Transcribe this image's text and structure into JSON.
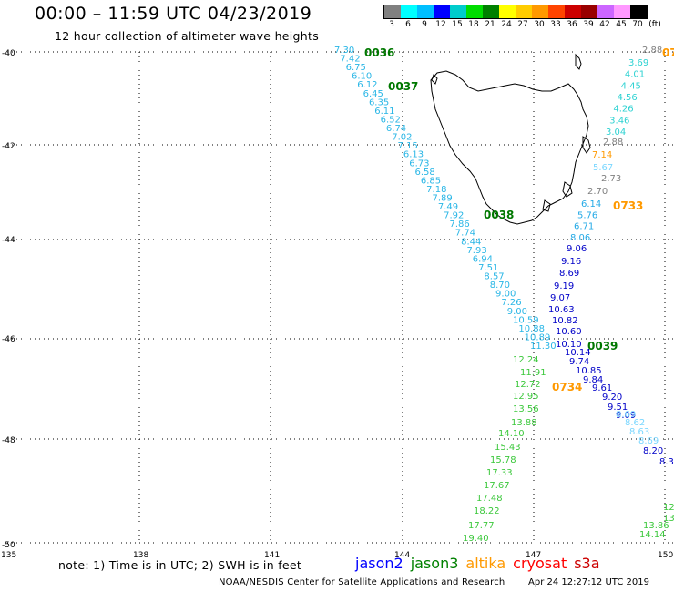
{
  "header": {
    "title": "00:00 – 11:59 UTC 04/23/2019",
    "subtitle": "12 hour collection of altimeter wave heights"
  },
  "legend": {
    "colors": [
      "#808080",
      "#00ffff",
      "#00bfff",
      "#0000ff",
      "#00cccc",
      "#00dd00",
      "#008000",
      "#ffff00",
      "#ffcc00",
      "#ff9900",
      "#ff4400",
      "#cc0000",
      "#990000",
      "#cc66ff",
      "#ff99ff",
      "#000000"
    ],
    "labels": [
      "3",
      "6",
      "9",
      "12",
      "15",
      "18",
      "21",
      "24",
      "27",
      "30",
      "33",
      "36",
      "39",
      "42",
      "45",
      "70",
      "(ft)"
    ]
  },
  "axes": {
    "lat_labels": [
      "-40",
      "-42",
      "-44",
      "-46",
      "-48",
      "-50"
    ],
    "lon_labels": [
      "135",
      "138",
      "141",
      "144",
      "147",
      "150"
    ]
  },
  "tracks": {
    "t1": {
      "color": "#29b6e6",
      "values": [
        "7.30",
        "7.42",
        "6.75",
        "6.10",
        "6.12",
        "6.45",
        "6.35",
        "6.11",
        "6.52",
        "6.74",
        "7.02",
        "7.15",
        "6.13",
        "6.73",
        "6.58",
        "6.85",
        "7.18",
        "7.89",
        "7.49",
        "7.92",
        "7.86",
        "7.74",
        "8.44",
        "7.93",
        "6.94",
        "7.51",
        "8.57",
        "8.70",
        "9.00",
        "7.26",
        "9.00",
        "10.59",
        "10.88",
        "10.89",
        "11.30"
      ]
    },
    "t2": {
      "color": "#2dd2d2",
      "values": [
        "3.69",
        "4.01",
        "4.45",
        "4.56",
        "4.26",
        "3.46",
        "3.04"
      ]
    },
    "t3": {
      "color": "#808080",
      "values": [
        "2.88",
        "2.88",
        "2.73",
        "2.70"
      ]
    },
    "t4": {
      "color": "#23a9e6",
      "values": [
        "6.14",
        "5.76",
        "6.71",
        "8.06"
      ]
    },
    "t5": {
      "color": "#0000c8",
      "values": [
        "9.06",
        "9.16",
        "8.69",
        "9.19",
        "9.07",
        "10.63",
        "10.82",
        "10.60",
        "10.10",
        "10.14",
        "9.74",
        "10.85",
        "9.84",
        "9.61",
        "9.20",
        "9.51",
        "9.09",
        "8.20",
        "8.3"
      ]
    },
    "t6": {
      "color": "#7bd7ff",
      "values": [
        "5.67",
        "8.69",
        "8.62",
        "8.63",
        "8.69"
      ]
    },
    "t7": {
      "color": "#3cc83c",
      "values": [
        "12.24",
        "11.91",
        "12.72",
        "12.95",
        "13.56",
        "13.88",
        "14.10",
        "15.43",
        "15.78",
        "17.33",
        "17.67",
        "17.48",
        "18.22",
        "17.77",
        "19.40",
        "12",
        "13.1",
        "13.86",
        "14.14"
      ]
    },
    "t8": {
      "color": "#ff9900",
      "values": [
        "7.14"
      ]
    }
  },
  "track_labels": [
    {
      "text": "0036",
      "color": "#007800"
    },
    {
      "text": "0037",
      "color": "#007800"
    },
    {
      "text": "0038",
      "color": "#007800"
    },
    {
      "text": "0039",
      "color": "#007800"
    },
    {
      "text": "0733",
      "color": "#ff9900"
    },
    {
      "text": "0734",
      "color": "#ff9900"
    },
    {
      "text": "07",
      "color": "#ff9900"
    }
  ],
  "footer": {
    "note": "note: 1) Time is in UTC; 2) SWH is in feet",
    "satellites": [
      {
        "name": "jason2",
        "color": "#0000ff"
      },
      {
        "name": "jason3",
        "color": "#008000"
      },
      {
        "name": "altika",
        "color": "#ff9900"
      },
      {
        "name": "cryosat",
        "color": "#ff0000"
      },
      {
        "name": "s3a",
        "color": "#cc0000"
      }
    ],
    "credit": "NOAA/NESDIS Center for Satellite Applications and Research",
    "timestamp": "Apr 24 12:27:12 UTC 2019"
  }
}
